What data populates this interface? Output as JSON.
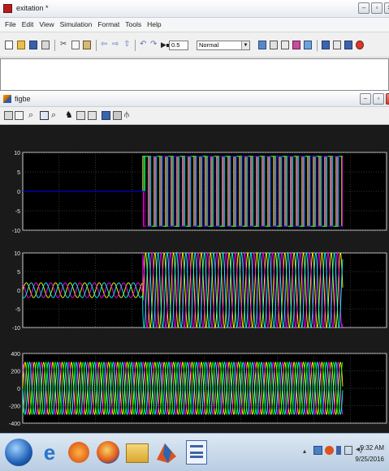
{
  "model_window": {
    "title": "exitation *",
    "menu": [
      "File",
      "Edit",
      "View",
      "Simulation",
      "Format",
      "Tools",
      "Help"
    ],
    "stop_time": "0.5",
    "sim_mode": "Normal"
  },
  "scope_window": {
    "title": "figbe"
  },
  "plots": [
    {
      "y_ticks": [
        "10",
        "5",
        "0",
        "-5",
        "-10"
      ],
      "ylim": [
        -10,
        10
      ],
      "signal": "square",
      "amplitude": 9,
      "onset_fraction": 0.33,
      "end_fraction": 0.88,
      "colors": [
        "#ffff00",
        "#ff00ff",
        "#00ffff",
        "#ff0000",
        "#00ff00",
        "#0000ff"
      ]
    },
    {
      "y_ticks": [
        "10",
        "5",
        "0",
        "-5",
        "-10"
      ],
      "ylim": [
        -10,
        10
      ],
      "signal": "sine",
      "pre_amplitude": 2,
      "amplitude": 10,
      "onset_fraction": 0.33,
      "end_fraction": 0.88,
      "colors": [
        "#ffff00",
        "#ff00ff",
        "#00ffff"
      ]
    },
    {
      "y_ticks": [
        "400",
        "200",
        "0",
        "-200",
        "-400"
      ],
      "ylim": [
        -400,
        400
      ],
      "signal": "sine",
      "amplitude": 300,
      "onset_fraction": 0.0,
      "end_fraction": 0.88,
      "colors": [
        "#ffff00",
        "#ff00ff",
        "#00ffff",
        "#00ff00"
      ]
    }
  ],
  "taskbar": {
    "apps": [
      "chrome-icon",
      "ie-icon",
      "media-icon",
      "firefox-icon",
      "explorer-icon",
      "matlab-icon",
      "word-icon"
    ],
    "time": "9:32 AM",
    "date": "9/25/2016"
  }
}
